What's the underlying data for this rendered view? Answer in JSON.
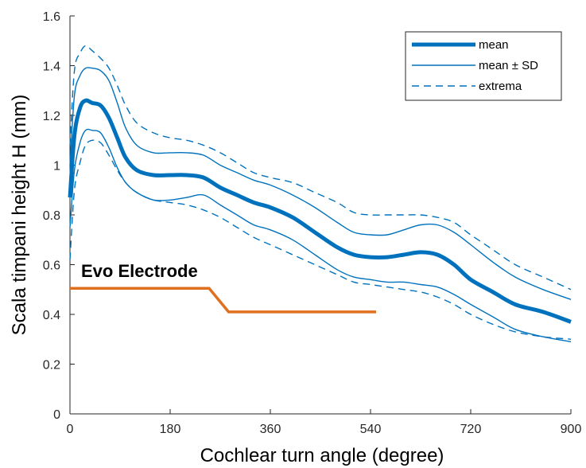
{
  "chart_data": {
    "type": "line",
    "xlabel": "Cochlear turn angle (degree)",
    "ylabel": "Scala timpani height H (mm)",
    "xlim": [
      0,
      900
    ],
    "ylim": [
      0,
      1.6
    ],
    "xticks": [
      0,
      180,
      360,
      540,
      720,
      900
    ],
    "yticks": [
      0,
      0.2,
      0.4,
      0.6,
      0.8,
      1,
      1.2,
      1.4,
      1.6
    ],
    "xtick_labels": [
      "0",
      "180",
      "360",
      "540",
      "720",
      "900"
    ],
    "ytick_labels": [
      "0",
      "0.2",
      "0.4",
      "0.6",
      "0.8",
      "1",
      "1.2",
      "1.4",
      "1.6"
    ],
    "grid": false,
    "legend_position": "top-right",
    "legend": [
      {
        "label": "mean",
        "style": "thick-solid"
      },
      {
        "label": "mean ± SD",
        "style": "solid"
      },
      {
        "label": "extrema",
        "style": "dashed"
      }
    ],
    "colors": {
      "series": "#0072BD",
      "electrode": "#E07020",
      "axis": "#262626"
    },
    "series": [
      {
        "name": "mean",
        "style": "thick-solid",
        "x": [
          0,
          8,
          18,
          28,
          40,
          55,
          70,
          85,
          100,
          120,
          150,
          180,
          210,
          240,
          270,
          300,
          330,
          360,
          400,
          440,
          480,
          510,
          540,
          570,
          600,
          630,
          660,
          690,
          720,
          760,
          800,
          850,
          900
        ],
        "y": [
          0.87,
          1.12,
          1.23,
          1.26,
          1.25,
          1.24,
          1.19,
          1.11,
          1.03,
          0.98,
          0.96,
          0.96,
          0.96,
          0.95,
          0.91,
          0.88,
          0.85,
          0.83,
          0.79,
          0.73,
          0.67,
          0.64,
          0.63,
          0.63,
          0.64,
          0.65,
          0.64,
          0.6,
          0.54,
          0.49,
          0.44,
          0.41,
          0.37
        ]
      },
      {
        "name": "mean + SD",
        "style": "solid",
        "x": [
          0,
          8,
          18,
          28,
          40,
          55,
          70,
          85,
          100,
          120,
          150,
          180,
          210,
          240,
          270,
          300,
          330,
          360,
          400,
          440,
          480,
          510,
          540,
          570,
          600,
          630,
          660,
          690,
          720,
          760,
          800,
          850,
          900
        ],
        "y": [
          1.0,
          1.28,
          1.36,
          1.39,
          1.39,
          1.38,
          1.34,
          1.25,
          1.15,
          1.08,
          1.05,
          1.05,
          1.05,
          1.04,
          1.0,
          0.97,
          0.94,
          0.92,
          0.88,
          0.83,
          0.77,
          0.73,
          0.72,
          0.72,
          0.74,
          0.76,
          0.76,
          0.73,
          0.68,
          0.61,
          0.55,
          0.5,
          0.46
        ]
      },
      {
        "name": "mean - SD",
        "style": "solid",
        "x": [
          0,
          8,
          18,
          28,
          40,
          55,
          70,
          85,
          100,
          120,
          150,
          180,
          210,
          240,
          270,
          300,
          330,
          360,
          400,
          440,
          480,
          510,
          540,
          570,
          600,
          630,
          660,
          690,
          720,
          760,
          800,
          850,
          900
        ],
        "y": [
          0.75,
          0.98,
          1.09,
          1.14,
          1.14,
          1.13,
          1.07,
          0.99,
          0.93,
          0.89,
          0.86,
          0.86,
          0.87,
          0.88,
          0.84,
          0.8,
          0.76,
          0.74,
          0.7,
          0.64,
          0.58,
          0.55,
          0.54,
          0.53,
          0.53,
          0.52,
          0.51,
          0.48,
          0.44,
          0.39,
          0.34,
          0.31,
          0.29
        ]
      },
      {
        "name": "extrema (upper)",
        "style": "dashed",
        "x": [
          0,
          8,
          18,
          28,
          40,
          55,
          70,
          85,
          100,
          120,
          150,
          180,
          210,
          240,
          270,
          300,
          330,
          360,
          400,
          440,
          480,
          510,
          540,
          570,
          600,
          630,
          660,
          690,
          720,
          760,
          800,
          850,
          900
        ],
        "y": [
          1.08,
          1.38,
          1.45,
          1.48,
          1.46,
          1.43,
          1.39,
          1.32,
          1.24,
          1.17,
          1.13,
          1.11,
          1.1,
          1.08,
          1.05,
          1.01,
          0.97,
          0.95,
          0.93,
          0.89,
          0.85,
          0.81,
          0.8,
          0.8,
          0.8,
          0.8,
          0.79,
          0.77,
          0.72,
          0.66,
          0.6,
          0.55,
          0.5
        ]
      },
      {
        "name": "extrema (lower)",
        "style": "dashed",
        "x": [
          0,
          8,
          18,
          28,
          40,
          55,
          70,
          85,
          100,
          120,
          150,
          180,
          210,
          240,
          270,
          300,
          330,
          360,
          400,
          440,
          480,
          510,
          540,
          570,
          600,
          630,
          660,
          690,
          720,
          760,
          800,
          850,
          900
        ],
        "y": [
          0.62,
          0.9,
          1.01,
          1.08,
          1.1,
          1.09,
          1.04,
          0.98,
          0.93,
          0.89,
          0.86,
          0.85,
          0.84,
          0.82,
          0.79,
          0.75,
          0.71,
          0.68,
          0.64,
          0.6,
          0.56,
          0.53,
          0.52,
          0.51,
          0.5,
          0.49,
          0.47,
          0.44,
          0.4,
          0.36,
          0.33,
          0.31,
          0.3
        ]
      }
    ],
    "annotation": {
      "text": "Evo Electrode",
      "x": [
        0,
        250,
        285,
        550
      ],
      "y": [
        0.505,
        0.505,
        0.41,
        0.41
      ]
    }
  }
}
